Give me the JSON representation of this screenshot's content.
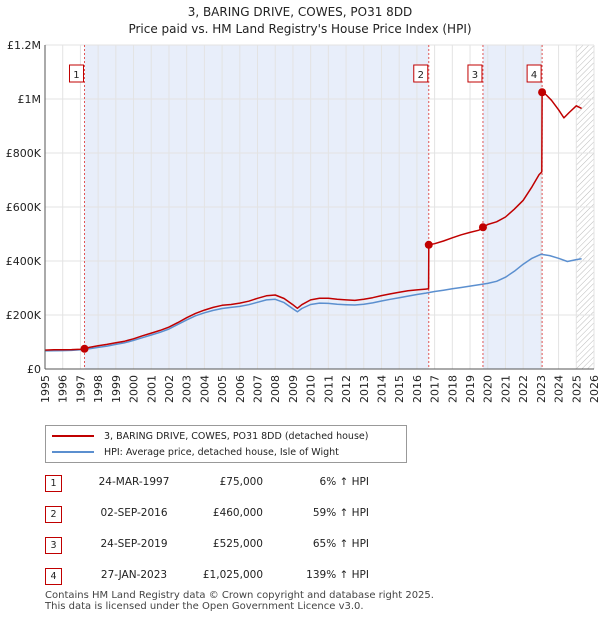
{
  "title_line1": "3, BARING DRIVE, COWES, PO31 8DD",
  "title_line2": "Price paid vs. HM Land Registry's House Price Index (HPI)",
  "chart_data": {
    "type": "line",
    "xlim": [
      1995,
      2026
    ],
    "ylim": [
      0,
      1200000
    ],
    "x_ticks": [
      1995,
      1996,
      1997,
      1998,
      1999,
      2000,
      2001,
      2002,
      2003,
      2004,
      2005,
      2006,
      2007,
      2008,
      2009,
      2010,
      2011,
      2012,
      2013,
      2014,
      2015,
      2016,
      2017,
      2018,
      2019,
      2020,
      2021,
      2022,
      2023,
      2024,
      2025,
      2026
    ],
    "y_ticks": [
      {
        "value": 0,
        "label": "£0"
      },
      {
        "value": 200000,
        "label": "£200K"
      },
      {
        "value": 400000,
        "label": "£400K"
      },
      {
        "value": 600000,
        "label": "£600K"
      },
      {
        "value": 800000,
        "label": "£800K"
      },
      {
        "value": 1000000,
        "label": "£1M"
      },
      {
        "value": 1200000,
        "label": "£1.2M"
      }
    ],
    "series": [
      {
        "name": "3, BARING DRIVE, COWES, PO31 8DD (detached house)",
        "color": "#c00000",
        "x": [
          1995.0,
          1995.5,
          1996.0,
          1996.5,
          1997.0,
          1997.23,
          1997.5,
          1998.0,
          1998.5,
          1999.0,
          1999.5,
          2000.0,
          2000.5,
          2001.0,
          2001.5,
          2002.0,
          2002.5,
          2003.0,
          2003.5,
          2004.0,
          2004.5,
          2005.0,
          2005.5,
          2006.0,
          2006.5,
          2007.0,
          2007.5,
          2008.0,
          2008.5,
          2009.0,
          2009.25,
          2009.5,
          2010.0,
          2010.5,
          2011.0,
          2011.5,
          2012.0,
          2012.5,
          2013.0,
          2013.5,
          2014.0,
          2014.5,
          2015.0,
          2015.5,
          2016.0,
          2016.5,
          2016.66,
          2016.67,
          2017.0,
          2017.5,
          2018.0,
          2018.5,
          2019.0,
          2019.5,
          2019.73,
          2020.0,
          2020.5,
          2021.0,
          2021.5,
          2022.0,
          2022.5,
          2022.9,
          2023.05,
          2023.07,
          2023.3,
          2023.6,
          2024.0,
          2024.3,
          2024.6,
          2025.0,
          2025.3
        ],
        "y": [
          70000,
          71000,
          71500,
          72000,
          73500,
          75000,
          80000,
          86000,
          91000,
          97000,
          103000,
          112000,
          123000,
          133000,
          143000,
          155000,
          172000,
          190000,
          206000,
          218000,
          228000,
          236000,
          239000,
          244000,
          251000,
          262000,
          271000,
          274000,
          261000,
          238000,
          225000,
          238000,
          256000,
          262000,
          262000,
          258000,
          256000,
          254000,
          258000,
          264000,
          272000,
          278000,
          284000,
          290000,
          293000,
          296000,
          297000,
          460000,
          464000,
          474000,
          486000,
          497000,
          506000,
          514000,
          525000,
          535000,
          545000,
          563000,
          592000,
          625000,
          675000,
          720000,
          730000,
          1025000,
          1015000,
          995000,
          960000,
          930000,
          950000,
          975000,
          965000
        ]
      },
      {
        "name": "HPI: Average price, detached house, Isle of Wight",
        "color": "#5b8fcf",
        "x": [
          1995.0,
          1995.5,
          1996.0,
          1996.5,
          1997.0,
          1997.5,
          1998.0,
          1998.5,
          1999.0,
          1999.5,
          2000.0,
          2000.5,
          2001.0,
          2001.5,
          2002.0,
          2002.5,
          2003.0,
          2003.5,
          2004.0,
          2004.5,
          2005.0,
          2005.5,
          2006.0,
          2006.5,
          2007.0,
          2007.5,
          2008.0,
          2008.5,
          2009.0,
          2009.25,
          2009.5,
          2010.0,
          2010.5,
          2011.0,
          2011.5,
          2012.0,
          2012.5,
          2013.0,
          2013.5,
          2014.0,
          2014.5,
          2015.0,
          2015.5,
          2016.0,
          2016.5,
          2017.0,
          2017.5,
          2018.0,
          2018.5,
          2019.0,
          2019.5,
          2020.0,
          2020.5,
          2021.0,
          2021.5,
          2022.0,
          2022.5,
          2023.0,
          2023.5,
          2024.0,
          2024.5,
          2025.0,
          2025.3
        ],
        "y": [
          67000,
          67500,
          68000,
          69000,
          71000,
          75000,
          80000,
          85000,
          91000,
          97000,
          106000,
          116000,
          126000,
          136000,
          148000,
          165000,
          182000,
          197000,
          208000,
          217000,
          224000,
          228000,
          232000,
          238000,
          247000,
          256000,
          258000,
          246000,
          223000,
          212000,
          224000,
          239000,
          244000,
          243000,
          240000,
          238000,
          237000,
          240000,
          245000,
          252000,
          258000,
          264000,
          270000,
          276000,
          281000,
          287000,
          292000,
          297000,
          302000,
          307000,
          312000,
          317000,
          325000,
          340000,
          362000,
          388000,
          410000,
          425000,
          420000,
          410000,
          398000,
          405000,
          408000
        ]
      }
    ],
    "sale_markers": [
      {
        "label": "1",
        "x": 1997.23,
        "y": 75000
      },
      {
        "label": "2",
        "x": 2016.67,
        "y": 460000
      },
      {
        "label": "3",
        "x": 2019.73,
        "y": 525000
      },
      {
        "label": "4",
        "x": 2023.07,
        "y": 1025000
      }
    ],
    "projection_start": 2025.0,
    "colors": {
      "shade": "#e8eefa",
      "marker": "#c00000",
      "vline": "#e05555"
    }
  },
  "legend": {
    "items": [
      {
        "label": "3, BARING DRIVE, COWES, PO31 8DD (detached house)",
        "color": "#c00000"
      },
      {
        "label": "HPI: Average price, detached house, Isle of Wight",
        "color": "#5b8fcf"
      }
    ]
  },
  "sales": [
    {
      "num": "1",
      "date": "24-MAR-1997",
      "price": "£75,000",
      "hpi": "6% ↑ HPI"
    },
    {
      "num": "2",
      "date": "02-SEP-2016",
      "price": "£460,000",
      "hpi": "59% ↑ HPI"
    },
    {
      "num": "3",
      "date": "24-SEP-2019",
      "price": "£525,000",
      "hpi": "65% ↑ HPI"
    },
    {
      "num": "4",
      "date": "27-JAN-2023",
      "price": "£1,025,000",
      "hpi": "139% ↑ HPI"
    }
  ],
  "footer": {
    "line1": "Contains HM Land Registry data © Crown copyright and database right 2025.",
    "line2": "This data is licensed under the Open Government Licence v3.0."
  }
}
